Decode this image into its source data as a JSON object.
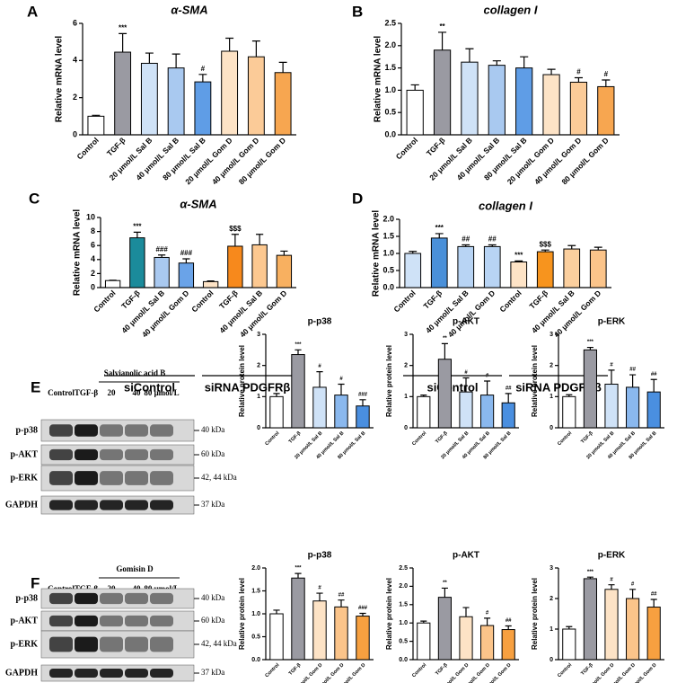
{
  "chart_data": [
    {
      "type": "bar",
      "panel": "A",
      "title": "α-SMA",
      "ylabel": "Relative mRNA level",
      "categories": [
        "Control",
        "TGF-β",
        "20 μmol/L Sal B",
        "40 μmol/L Sal B",
        "80 μmol/L Sal B",
        "20 μmol/L Gom D",
        "40 μmol/L Gom D",
        "80 μmol/L Gom D"
      ],
      "values": [
        1.0,
        4.45,
        3.85,
        3.6,
        2.85,
        4.5,
        4.2,
        3.35
      ],
      "errors": [
        0.05,
        1.0,
        0.55,
        0.75,
        0.4,
        0.7,
        0.85,
        0.55
      ],
      "annotations": [
        null,
        "***",
        null,
        null,
        "#",
        null,
        null,
        null
      ],
      "colors": [
        "#ffffff",
        "#9a9aa2",
        "#cfe2f7",
        "#a9c9f0",
        "#5f9de6",
        "#fde3c6",
        "#fbcb98",
        "#f7a650"
      ],
      "ylim": [
        0,
        6
      ],
      "yticks": [
        0,
        2,
        4,
        6
      ]
    },
    {
      "type": "bar",
      "panel": "B",
      "title": "collagen I",
      "ylabel": "Relative mRNA level",
      "categories": [
        "Control",
        "TGF-β",
        "20 μmol/L Sal B",
        "40 μmol/L Sal B",
        "80 μmol/L Sal B",
        "20 μmol/L Gom D",
        "40 μmol/L Gom D",
        "80 μmol/L Gom D"
      ],
      "values": [
        1.0,
        1.9,
        1.63,
        1.56,
        1.5,
        1.35,
        1.18,
        1.08
      ],
      "errors": [
        0.12,
        0.4,
        0.3,
        0.1,
        0.25,
        0.12,
        0.1,
        0.15
      ],
      "annotations": [
        null,
        "**",
        null,
        null,
        null,
        null,
        "#",
        "#"
      ],
      "colors": [
        "#ffffff",
        "#9a9aa2",
        "#cfe2f7",
        "#a9c9f0",
        "#5f9de6",
        "#fde3c6",
        "#fbcb98",
        "#f7a650"
      ],
      "ylim": [
        0,
        2.5
      ],
      "yticks": [
        {
          "value": 0,
          "label": "0.0"
        },
        0.5,
        {
          "value": 1,
          "label": "1.0"
        },
        1.5,
        {
          "value": 2,
          "label": "2.0"
        },
        2.5
      ]
    },
    {
      "type": "bar",
      "panel": "C",
      "title": "α-SMA",
      "ylabel": "Relative mRNA level",
      "categories": [
        "Control",
        "TGF-β",
        "40 μmol/L Sal B",
        "40 μmol/L Gom D",
        "Control",
        "TGF-β",
        "40 μmol/L Sal B",
        "40 μmol/L Gom D"
      ],
      "groups": [
        "siControl",
        "siRNA PDGFRβ"
      ],
      "values": [
        1.0,
        7.1,
        4.3,
        3.5,
        0.85,
        5.9,
        6.1,
        4.6
      ],
      "errors": [
        0.05,
        0.8,
        0.35,
        0.6,
        0.1,
        1.7,
        1.5,
        0.6
      ],
      "annotations": [
        null,
        "***",
        "###",
        "###",
        null,
        "$$$",
        null,
        null
      ],
      "colors": [
        "#ffffff",
        "#1b8b9b",
        "#a9c9f0",
        "#6aa3e8",
        "#fde3c6",
        "#f7891c",
        "#fcc890",
        "#f8b060"
      ],
      "ylim": [
        0,
        10
      ],
      "yticks": [
        0,
        2,
        4,
        6,
        8,
        10
      ]
    },
    {
      "type": "bar",
      "panel": "D",
      "title": "collagen I",
      "ylabel": "Relative mRNA level",
      "categories": [
        "Control",
        "TGF-β",
        "40 μmol/L Sal B",
        "40 μmol/L Gom D",
        "Control",
        "TGF-β",
        "40 μmol/L Sal B",
        "40 μmol/L Gom D"
      ],
      "groups": [
        "siControl",
        "siRNA PDGFRβ"
      ],
      "values": [
        1.0,
        1.45,
        1.2,
        1.2,
        0.75,
        1.05,
        1.13,
        1.1
      ],
      "errors": [
        0.06,
        0.13,
        0.05,
        0.05,
        0.03,
        0.05,
        0.1,
        0.08
      ],
      "annotations": [
        null,
        "***",
        "##",
        "##",
        "***",
        "$$$",
        null,
        null
      ],
      "colors": [
        "#cfe2f7",
        "#4a90d9",
        "#b8d4f4",
        "#b8d4f4",
        "#fde3c6",
        "#f7941e",
        "#fbcf9e",
        "#fbc48a"
      ],
      "ylim": [
        0,
        2
      ],
      "yticks": [
        {
          "value": 0,
          "label": "0.0"
        },
        0.5,
        {
          "value": 1,
          "label": "1.0"
        },
        1.5,
        {
          "value": 2,
          "label": "2.0"
        }
      ]
    },
    {
      "type": "bar",
      "title": "p-p38",
      "ylabel": "Relative protein level",
      "categories": [
        "Control",
        "TGF-β",
        "20 μmol/L Sal B",
        "40 μmol/L Sal B",
        "80 μmol/L Sal B"
      ],
      "values": [
        1.0,
        2.35,
        1.3,
        1.05,
        0.7
      ],
      "errors": [
        0.1,
        0.15,
        0.5,
        0.35,
        0.2
      ],
      "annotations": [
        null,
        "***",
        "#",
        "#",
        "###"
      ],
      "colors": [
        "#ffffff",
        "#9a9aa2",
        "#cfe2f7",
        "#8ab8ee",
        "#4a8fe0"
      ],
      "ylim": [
        0,
        3
      ],
      "yticks": [
        0,
        1,
        2,
        3
      ]
    },
    {
      "type": "bar",
      "title": "p-AKT",
      "ylabel": "Relative protein level",
      "categories": [
        "Control",
        "TGF-β",
        "20 μmol/L Sal B",
        "40 μmol/L Sal B",
        "80 μmol/L Sal B"
      ],
      "values": [
        1.0,
        2.2,
        1.15,
        1.05,
        0.8
      ],
      "errors": [
        0.05,
        0.5,
        0.45,
        0.45,
        0.3
      ],
      "annotations": [
        null,
        "**",
        "#",
        "#",
        "##"
      ],
      "colors": [
        "#ffffff",
        "#9a9aa2",
        "#cfe2f7",
        "#8ab8ee",
        "#4a8fe0"
      ],
      "ylim": [
        0,
        3
      ],
      "yticks": [
        0,
        1,
        2,
        3
      ]
    },
    {
      "type": "bar",
      "title": "p-ERK",
      "ylabel": "Relative protein level",
      "categories": [
        "Control",
        "TGF-β",
        "20 μmol/L Sal B",
        "40 μmol/L Sal B",
        "80 μmol/L Sal B"
      ],
      "values": [
        1.0,
        2.5,
        1.4,
        1.3,
        1.15
      ],
      "errors": [
        0.06,
        0.08,
        0.45,
        0.4,
        0.4
      ],
      "annotations": [
        null,
        "***",
        "#",
        "##",
        "##"
      ],
      "colors": [
        "#ffffff",
        "#9a9aa2",
        "#cfe2f7",
        "#8ab8ee",
        "#4a8fe0"
      ],
      "ylim": [
        0,
        3
      ],
      "yticks": [
        0,
        1,
        2,
        3
      ]
    },
    {
      "type": "bar",
      "title": "p-p38",
      "ylabel": "Relative protein level",
      "categories": [
        "Control",
        "TGF-β",
        "20 μmol/L Gom D",
        "40 μmol/L Gom D",
        "80 μmol/L Gom D"
      ],
      "values": [
        1.0,
        1.78,
        1.28,
        1.15,
        0.95
      ],
      "errors": [
        0.08,
        0.1,
        0.17,
        0.15,
        0.06
      ],
      "annotations": [
        null,
        "***",
        "#",
        "##",
        "###"
      ],
      "colors": [
        "#ffffff",
        "#9a9aa2",
        "#fde3c6",
        "#fbc48a",
        "#f7a040"
      ],
      "ylim": [
        0,
        2
      ],
      "yticks": [
        {
          "value": 0,
          "label": "0.0"
        },
        0.5,
        {
          "value": 1,
          "label": "1.0"
        },
        1.5,
        {
          "value": 2,
          "label": "2.0"
        }
      ]
    },
    {
      "type": "bar",
      "title": "p-AKT",
      "ylabel": "Relative protein level",
      "categories": [
        "Control",
        "TGF-β",
        "20 μmol/L Gom D",
        "40 μmol/L Gom D",
        "80 μmol/L Gom D"
      ],
      "values": [
        1.0,
        1.7,
        1.17,
        0.93,
        0.82
      ],
      "errors": [
        0.05,
        0.25,
        0.25,
        0.2,
        0.1
      ],
      "annotations": [
        null,
        "**",
        null,
        "#",
        "##"
      ],
      "colors": [
        "#ffffff",
        "#9a9aa2",
        "#fde3c6",
        "#fbc48a",
        "#f7a040"
      ],
      "ylim": [
        0,
        2.5
      ],
      "yticks": [
        {
          "value": 0,
          "label": "0.0"
        },
        0.5,
        {
          "value": 1,
          "label": "1.0"
        },
        1.5,
        {
          "value": 2,
          "label": "2.0"
        },
        2.5
      ]
    },
    {
      "type": "bar",
      "title": "p-ERK",
      "ylabel": "Relative protein level",
      "categories": [
        "Control",
        "TGF-β",
        "20 μmol/L Gom D",
        "40 μmol/L Gom D",
        "80 μmol/L Gom D"
      ],
      "values": [
        1.0,
        2.65,
        2.3,
        2.0,
        1.72
      ],
      "errors": [
        0.08,
        0.05,
        0.15,
        0.3,
        0.25
      ],
      "annotations": [
        null,
        "***",
        "#",
        "#",
        "##"
      ],
      "colors": [
        "#ffffff",
        "#9a9aa2",
        "#fde3c6",
        "#fbc48a",
        "#f7a040"
      ],
      "ylim": [
        0,
        3
      ],
      "yticks": [
        0,
        1,
        2,
        3
      ]
    }
  ],
  "blots": [
    {
      "panel": "E",
      "header": "Salvianolic acid B",
      "lanes": [
        "Control",
        "TGF-β",
        "20",
        "40",
        "80 μmol/L"
      ],
      "rows": [
        {
          "name": "p-p38",
          "size": "40 kDa"
        },
        {
          "name": "p-AKT",
          "size": "60 kDa"
        },
        {
          "name": "p-ERK",
          "size": "42, 44 kDa"
        },
        {
          "name": "GAPDH",
          "size": "37 kDa"
        }
      ]
    },
    {
      "panel": "F",
      "header": "Gomisin D",
      "lanes": [
        "Control",
        "TGF-β",
        "20",
        "40",
        "80 μmol/L"
      ],
      "rows": [
        {
          "name": "p-p38",
          "size": "40 kDa"
        },
        {
          "name": "p-AKT",
          "size": "60 kDa"
        },
        {
          "name": "p-ERK",
          "size": "42, 44 kDa"
        },
        {
          "name": "GAPDH",
          "size": "37 kDa"
        }
      ]
    }
  ]
}
